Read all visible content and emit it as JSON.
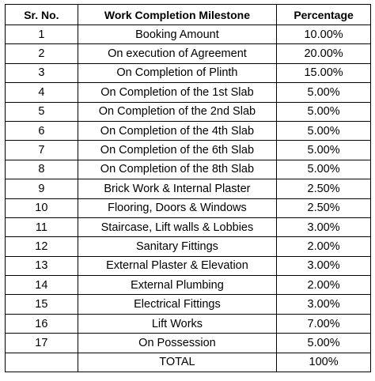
{
  "table": {
    "header": [
      "Sr. No.",
      "Work Completion Milestone",
      "Percentage"
    ],
    "rows": [
      [
        "1",
        "Booking Amount",
        "10.00%"
      ],
      [
        "2",
        "On execution of Agreement",
        "20.00%"
      ],
      [
        "3",
        "On Completion of Plinth",
        "15.00%"
      ],
      [
        "4",
        "On Completion of the 1st Slab",
        "5.00%"
      ],
      [
        "5",
        "On Completion of the 2nd Slab",
        "5.00%"
      ],
      [
        "6",
        "On Completion of the 4th Slab",
        "5.00%"
      ],
      [
        "7",
        "On Completion of the 6th Slab",
        "5.00%"
      ],
      [
        "8",
        "On Completion of the 8th Slab",
        "5.00%"
      ],
      [
        "9",
        "Brick Work & Internal Plaster",
        "2.50%"
      ],
      [
        "10",
        "Flooring, Doors & Windows",
        "2.50%"
      ],
      [
        "11",
        "Staircase, Lift walls & Lobbies",
        "3.00%"
      ],
      [
        "12",
        "Sanitary Fittings",
        "2.00%"
      ],
      [
        "13",
        "External Plaster & Elevation",
        "3.00%"
      ],
      [
        "14",
        "External Plumbing",
        "2.00%"
      ],
      [
        "15",
        "Electrical Fittings",
        "3.00%"
      ],
      [
        "16",
        "Lift Works",
        "7.00%"
      ],
      [
        "17",
        "On Possession",
        "5.00%"
      ]
    ],
    "total": {
      "label": "TOTAL",
      "percentage": "100%"
    }
  }
}
